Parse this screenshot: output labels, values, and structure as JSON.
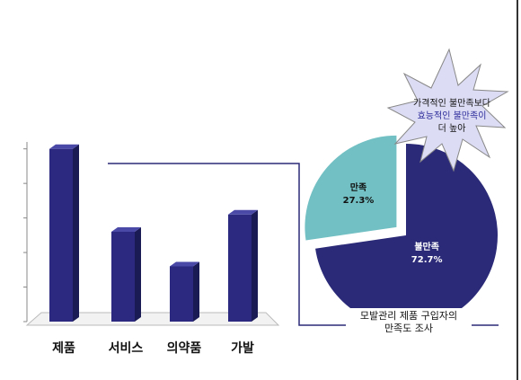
{
  "chart_data": [
    {
      "type": "bar3d",
      "categories": [
        "제품",
        "서비스",
        "의약품",
        "가발"
      ],
      "values": [
        5.0,
        2.6,
        1.6,
        3.1
      ],
      "color": "#2b2a80",
      "ylim": [
        0,
        5.2
      ],
      "yticks": [
        0,
        1,
        2,
        3,
        4,
        5
      ]
    },
    {
      "type": "pie",
      "categories": [
        "만족",
        "불만족"
      ],
      "values": [
        27.3,
        72.7
      ],
      "value_labels": [
        "27.3%",
        "72.7%"
      ],
      "colors": [
        "#72c0c3",
        "#2b2a78"
      ],
      "exploded": [
        true,
        false
      ],
      "callout": [
        "가격적인 불만족보다",
        "효능적인 불만족이",
        "더 높아"
      ],
      "caption": [
        "모발관리 제품 구입자의",
        "만족도 조사"
      ]
    }
  ]
}
